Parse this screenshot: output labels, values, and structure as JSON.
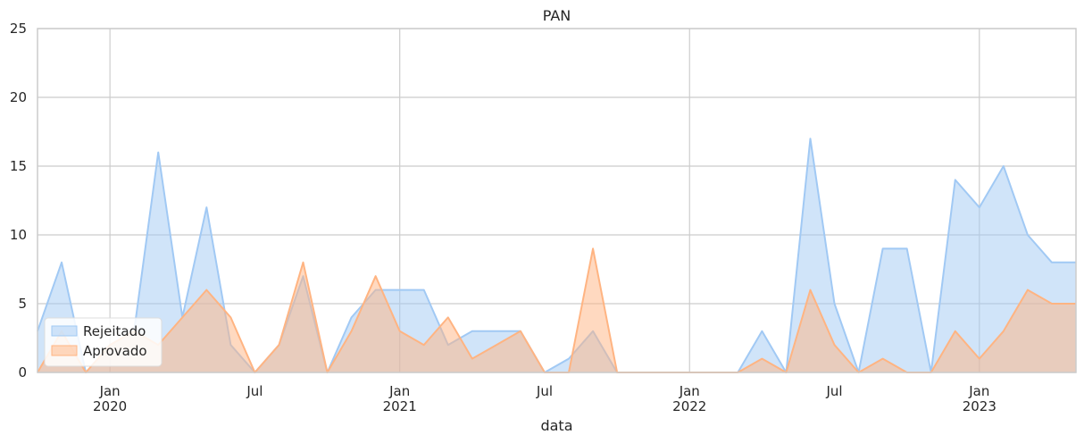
{
  "chart_data": {
    "type": "area",
    "title": "PAN",
    "xlabel": "data",
    "ylabel": "",
    "ylim": [
      0,
      25
    ],
    "y_ticks": [
      0,
      5,
      10,
      15,
      20,
      25
    ],
    "x_range": [
      "2019-10",
      "2023-05"
    ],
    "x_ticks": [
      {
        "date": "2020-01",
        "label": "Jan",
        "year": "2020",
        "major": true
      },
      {
        "date": "2020-07",
        "label": "Jul",
        "year": "",
        "major": false
      },
      {
        "date": "2021-01",
        "label": "Jan",
        "year": "2021",
        "major": true
      },
      {
        "date": "2021-07",
        "label": "Jul",
        "year": "",
        "major": false
      },
      {
        "date": "2022-01",
        "label": "Jan",
        "year": "2022",
        "major": true
      },
      {
        "date": "2022-07",
        "label": "Jul",
        "year": "",
        "major": false
      },
      {
        "date": "2023-01",
        "label": "Jan",
        "year": "2023",
        "major": true
      }
    ],
    "grid": true,
    "legend_position": "bottom-left",
    "x": [
      "2019-10",
      "2019-11",
      "2019-12",
      "2020-01",
      "2020-02",
      "2020-03",
      "2020-04",
      "2020-05",
      "2020-06",
      "2020-07",
      "2020-08",
      "2020-09",
      "2020-10",
      "2020-11",
      "2020-12",
      "2021-01",
      "2021-02",
      "2021-03",
      "2021-04",
      "2021-05",
      "2021-06",
      "2021-07",
      "2021-08",
      "2021-09",
      "2021-10",
      "2021-11",
      "2021-12",
      "2022-01",
      "2022-02",
      "2022-03",
      "2022-04",
      "2022-05",
      "2022-06",
      "2022-07",
      "2022-08",
      "2022-09",
      "2022-10",
      "2022-11",
      "2022-12",
      "2023-01",
      "2023-02",
      "2023-03",
      "2023-04",
      "2023-05"
    ],
    "series": [
      {
        "name": "Rejeitado",
        "color": "#a1c9f4",
        "values": [
          3,
          8,
          0,
          2,
          3,
          16,
          4,
          12,
          2,
          0,
          2,
          7,
          0,
          4,
          6,
          6,
          6,
          2,
          3,
          3,
          3,
          0,
          1,
          3,
          0,
          0,
          0,
          0,
          0,
          0,
          3,
          0,
          17,
          5,
          0,
          9,
          9,
          0,
          14,
          12,
          15,
          10,
          8,
          8
        ]
      },
      {
        "name": "Aprovado",
        "color": "#ffb482",
        "values": [
          0,
          3,
          0,
          2,
          3,
          2,
          4,
          6,
          4,
          0,
          2,
          8,
          0,
          3,
          7,
          3,
          2,
          4,
          1,
          2,
          3,
          0,
          0,
          9,
          0,
          0,
          0,
          0,
          0,
          0,
          1,
          0,
          6,
          2,
          0,
          1,
          0,
          0,
          3,
          1,
          3,
          6,
          5,
          5
        ]
      }
    ]
  }
}
